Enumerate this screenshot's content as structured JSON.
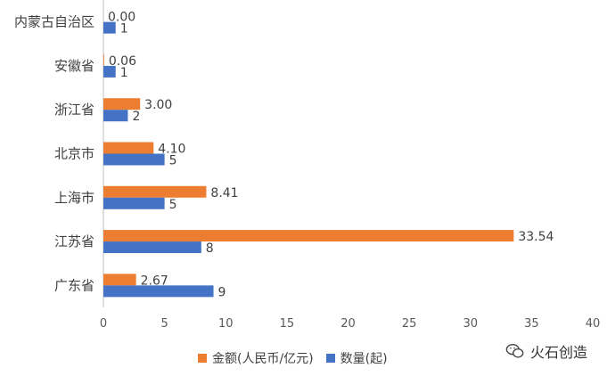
{
  "chart_data": {
    "type": "bar",
    "orientation": "horizontal",
    "categories": [
      "内蒙古自治区",
      "安徽省",
      "浙江省",
      "北京市",
      "上海市",
      "江苏省",
      "广东省"
    ],
    "series": [
      {
        "name": "金额(人民币/亿元)",
        "color": "#ED7D31",
        "values": [
          0.0,
          0.06,
          3.0,
          4.1,
          8.41,
          33.54,
          2.67
        ],
        "labels": [
          "0.00",
          "0.06",
          "3.00",
          "4.10",
          "8.41",
          "33.54",
          "2.67"
        ]
      },
      {
        "name": "数量(起)",
        "color": "#4472C4",
        "values": [
          1,
          1,
          2,
          5,
          5,
          8,
          9
        ],
        "labels": [
          "1",
          "1",
          "2",
          "5",
          "5",
          "8",
          "9"
        ]
      }
    ],
    "xlim": [
      0,
      40
    ],
    "xticks": [
      "0",
      "5",
      "10",
      "15",
      "20",
      "25",
      "30",
      "35",
      "40"
    ],
    "grid": false,
    "legend_position": "bottom"
  },
  "watermark": {
    "icon": "wechat-icon",
    "text": "火石创造"
  }
}
